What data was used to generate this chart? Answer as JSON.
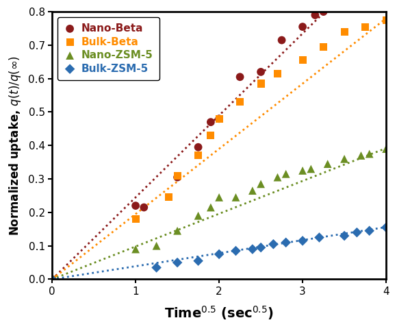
{
  "xlabel": "Time$^{0.5}$ (sec$^{0.5}$)",
  "ylabel": "Normalized uptake, $q(t)/q(\\infty)$",
  "xlim": [
    0,
    4
  ],
  "ylim": [
    0,
    0.8
  ],
  "xticks": [
    0,
    1,
    2,
    3,
    4
  ],
  "yticks": [
    0.0,
    0.1,
    0.2,
    0.3,
    0.4,
    0.5,
    0.6,
    0.7,
    0.8
  ],
  "nano_beta": {
    "label": "Nano-Beta",
    "color": "#8B1A1A",
    "marker": "o",
    "x": [
      0.0,
      1.0,
      1.1,
      1.5,
      1.75,
      1.9,
      2.0,
      2.25,
      2.5,
      2.75,
      3.0,
      3.15,
      3.25
    ],
    "y": [
      0.0,
      0.22,
      0.215,
      0.305,
      0.395,
      0.47,
      0.48,
      0.605,
      0.62,
      0.715,
      0.755,
      0.79,
      0.8
    ],
    "fit_slope": 0.245
  },
  "bulk_beta": {
    "label": "Bulk-Beta",
    "color": "#FF8C00",
    "marker": "s",
    "x": [
      0.0,
      1.0,
      1.4,
      1.5,
      1.75,
      1.9,
      2.0,
      2.25,
      2.5,
      2.7,
      3.0,
      3.25,
      3.5,
      3.75,
      4.0
    ],
    "y": [
      0.0,
      0.18,
      0.245,
      0.31,
      0.37,
      0.43,
      0.48,
      0.53,
      0.585,
      0.615,
      0.655,
      0.695,
      0.74,
      0.755,
      0.775
    ],
    "fit_slope": 0.195
  },
  "nano_zsm5": {
    "label": "Nano-ZSM-5",
    "color": "#6B8E23",
    "marker": "^",
    "x": [
      0.0,
      1.0,
      1.25,
      1.5,
      1.75,
      1.9,
      2.0,
      2.2,
      2.4,
      2.5,
      2.7,
      2.8,
      3.0,
      3.1,
      3.3,
      3.5,
      3.7,
      3.8,
      4.0
    ],
    "y": [
      0.0,
      0.09,
      0.1,
      0.145,
      0.19,
      0.215,
      0.245,
      0.245,
      0.265,
      0.285,
      0.305,
      0.315,
      0.325,
      0.33,
      0.345,
      0.36,
      0.37,
      0.375,
      0.39
    ],
    "fit_slope": 0.098
  },
  "bulk_zsm5": {
    "label": "Bulk-ZSM-5",
    "color": "#2B6CB0",
    "marker": "D",
    "x": [
      0.0,
      1.25,
      1.5,
      1.75,
      2.0,
      2.2,
      2.4,
      2.5,
      2.65,
      2.8,
      3.0,
      3.2,
      3.5,
      3.65,
      3.8,
      4.0
    ],
    "y": [
      0.0,
      0.035,
      0.05,
      0.055,
      0.075,
      0.085,
      0.09,
      0.095,
      0.105,
      0.11,
      0.115,
      0.125,
      0.13,
      0.14,
      0.145,
      0.155
    ],
    "fit_slope": 0.039
  }
}
